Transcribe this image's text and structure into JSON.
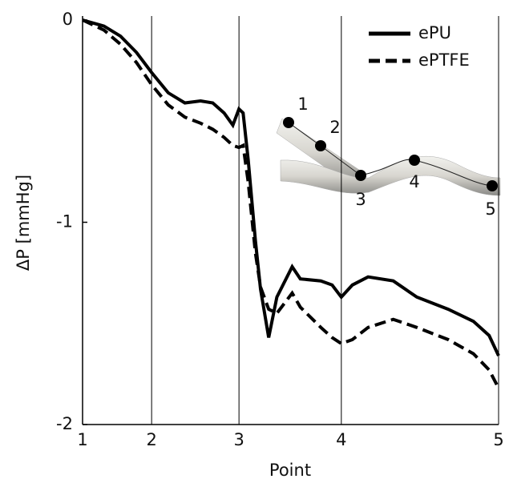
{
  "chart_data": {
    "type": "line",
    "x_label": "Point",
    "y_label": "ΔP [mmHg]",
    "x": [
      1,
      1.31,
      1.55,
      1.78,
      2,
      2.19,
      2.38,
      2.56,
      2.7,
      2.83,
      2.93,
      3,
      3.04,
      3.09,
      3.16,
      3.21,
      3.29,
      3.37,
      3.52,
      3.6,
      3.8,
      3.91,
      4,
      4.07,
      4.17,
      4.33,
      4.48,
      4.68,
      4.84,
      4.94,
      5
    ],
    "series": [
      {
        "name": "ePU",
        "color": "#000000",
        "dash": false,
        "values": [
          0,
          -0.03,
          -0.08,
          -0.16,
          -0.26,
          -0.36,
          -0.41,
          -0.4,
          -0.41,
          -0.46,
          -0.52,
          -0.44,
          -0.46,
          -0.69,
          -1.09,
          -1.33,
          -1.57,
          -1.37,
          -1.22,
          -1.28,
          -1.29,
          -1.31,
          -1.37,
          -1.31,
          -1.27,
          -1.29,
          -1.37,
          -1.43,
          -1.49,
          -1.56,
          -1.66
        ]
      },
      {
        "name": "ePTFE",
        "color": "#000000",
        "dash": true,
        "values": [
          0,
          -0.05,
          -0.12,
          -0.21,
          -0.32,
          -0.42,
          -0.48,
          -0.51,
          -0.54,
          -0.58,
          -0.62,
          -0.63,
          -0.62,
          -0.8,
          -1.15,
          -1.32,
          -1.43,
          -1.45,
          -1.35,
          -1.42,
          -1.52,
          -1.57,
          -1.6,
          -1.58,
          -1.52,
          -1.48,
          -1.52,
          -1.58,
          -1.65,
          -1.73,
          -1.82
        ]
      }
    ],
    "xlim": [
      1,
      5
    ],
    "xticks": [
      1,
      2,
      3,
      4,
      5
    ],
    "ylim": [
      -2,
      0
    ],
    "yticks": [
      0,
      -1,
      -2
    ],
    "grid": true,
    "legend": "upper right",
    "inset_labels": [
      "1",
      "2",
      "3",
      "4",
      "5"
    ]
  }
}
